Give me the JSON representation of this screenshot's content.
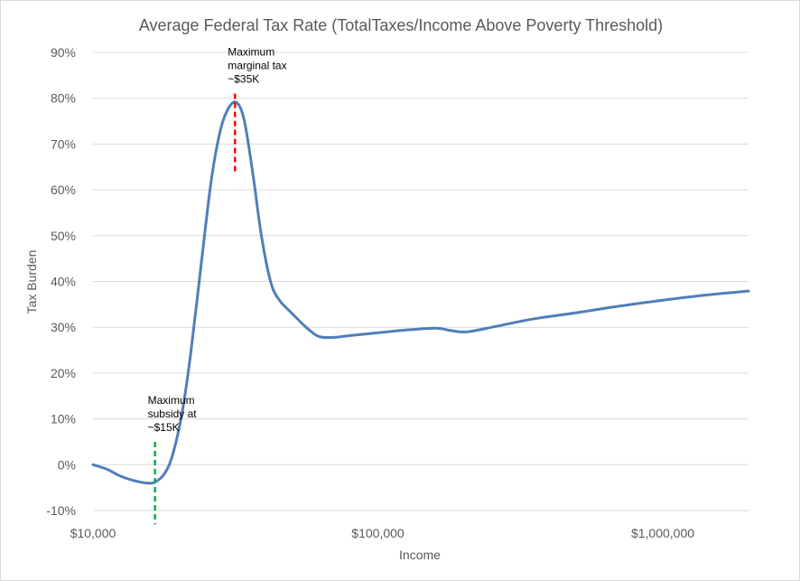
{
  "chart_data": {
    "type": "line",
    "title": "Average Federal Tax Rate (TotalTaxes/Income Above Poverty Threshold)",
    "xlabel": "Income",
    "ylabel": "Tax Burden",
    "x_scale": "log",
    "xlim": [
      10000,
      2000000
    ],
    "ylim": [
      -10,
      90
    ],
    "y_ticks": [
      "-10%",
      "0%",
      "10%",
      "20%",
      "30%",
      "40%",
      "50%",
      "60%",
      "70%",
      "80%",
      "90%"
    ],
    "x_ticks": [
      {
        "value": 10000,
        "label": "$10,000"
      },
      {
        "value": 100000,
        "label": "$100,000"
      },
      {
        "value": 1000000,
        "label": "$1,000,000"
      }
    ],
    "grid": "horizontal",
    "legend": "none",
    "series": [
      {
        "color": "#4f7fb8",
        "points": [
          [
            10000,
            0
          ],
          [
            11200,
            -1
          ],
          [
            12500,
            -2.5
          ],
          [
            14000,
            -3.5
          ],
          [
            15500,
            -4
          ],
          [
            16500,
            -3.8
          ],
          [
            17800,
            -2
          ],
          [
            19000,
            2
          ],
          [
            20500,
            11
          ],
          [
            22000,
            24
          ],
          [
            24000,
            44
          ],
          [
            26000,
            62
          ],
          [
            28000,
            73
          ],
          [
            30000,
            78
          ],
          [
            32000,
            79
          ],
          [
            34000,
            75
          ],
          [
            36500,
            63
          ],
          [
            39000,
            50
          ],
          [
            42000,
            40
          ],
          [
            45000,
            36
          ],
          [
            50000,
            33
          ],
          [
            56000,
            30
          ],
          [
            62000,
            28
          ],
          [
            70000,
            27.8
          ],
          [
            80000,
            28.2
          ],
          [
            100000,
            28.8
          ],
          [
            125000,
            29.4
          ],
          [
            160000,
            29.8
          ],
          [
            180000,
            29.3
          ],
          [
            205000,
            29
          ],
          [
            260000,
            30.2
          ],
          [
            350000,
            31.8
          ],
          [
            500000,
            33.2
          ],
          [
            700000,
            34.6
          ],
          [
            1000000,
            35.9
          ],
          [
            1400000,
            37
          ],
          [
            2000000,
            37.9
          ]
        ]
      }
    ],
    "annotations": [
      {
        "lines": [
          "Maximum",
          "marginal tax",
          "~$35K"
        ],
        "x": 31500,
        "y_from": 64,
        "y_to": 81,
        "color": "#ff0000"
      },
      {
        "lines": [
          "Maximum",
          "subsidy at",
          "~$15K"
        ],
        "x": 16500,
        "y_from": -13,
        "y_to": 5,
        "color": "#00b050"
      }
    ]
  }
}
